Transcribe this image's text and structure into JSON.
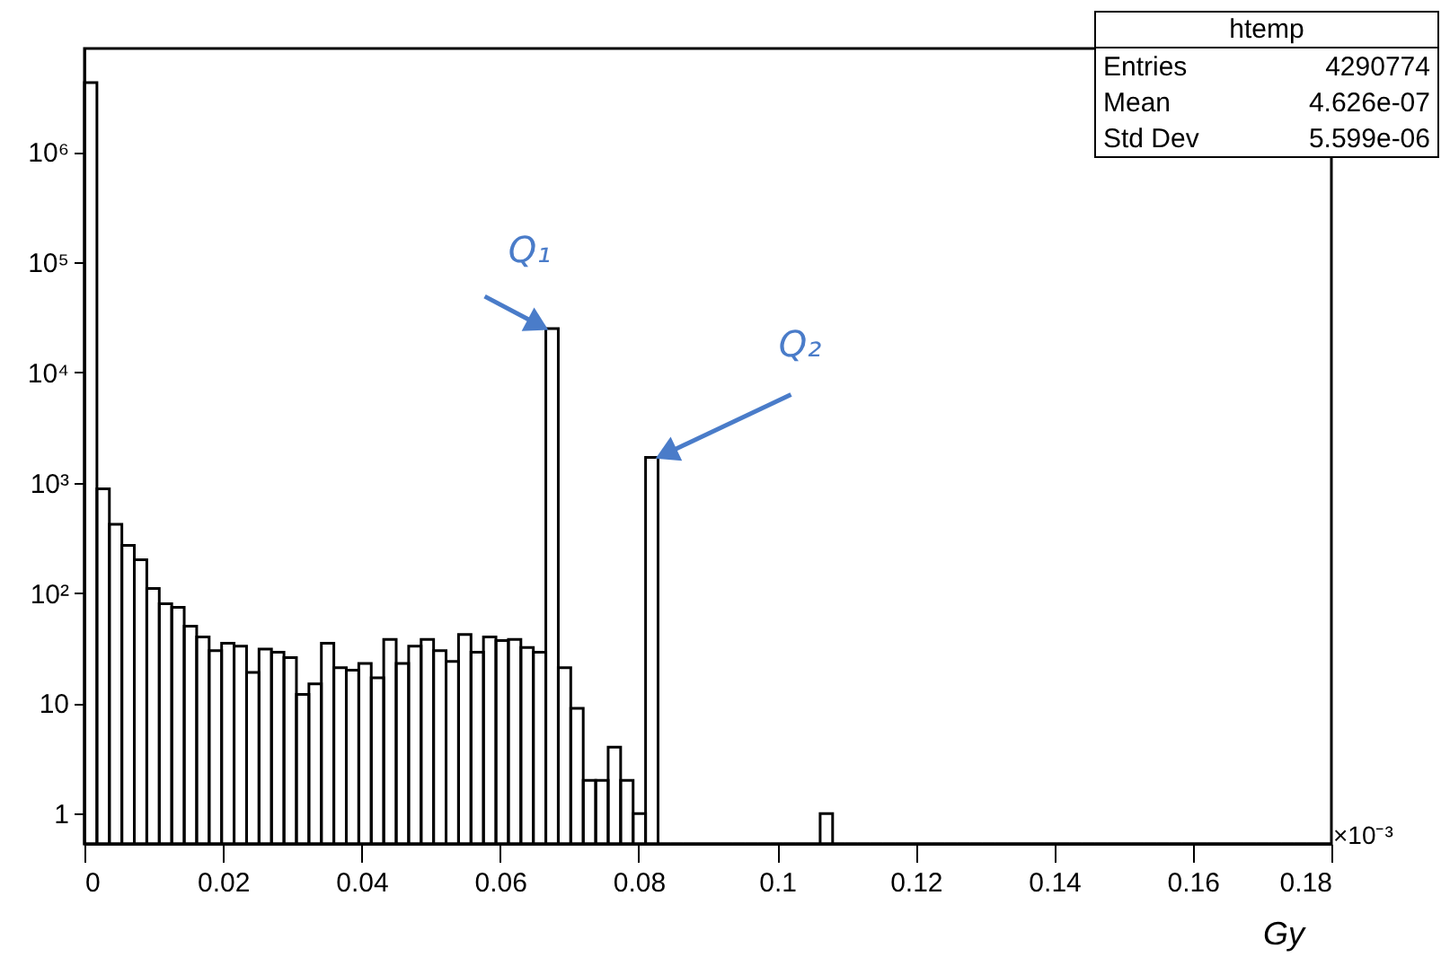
{
  "chart_data": {
    "type": "histogram",
    "title": "htemp",
    "xlabel": "Gy",
    "bins": [
      0,
      0.0018,
      0.0036,
      0.0054,
      0.0072,
      0.009,
      0.0108,
      0.0126,
      0.0144,
      0.0162,
      0.018,
      0.0198,
      0.0216,
      0.0234,
      0.0252,
      0.027,
      0.0288,
      0.0306,
      0.0324,
      0.0342,
      0.036,
      0.0378,
      0.0396,
      0.0414,
      0.0432,
      0.045,
      0.0468,
      0.0486,
      0.0504,
      0.0522,
      0.054,
      0.0558,
      0.0576,
      0.0594,
      0.0612,
      0.063,
      0.0648,
      0.0666,
      0.0684,
      0.0702,
      0.072,
      0.0738,
      0.0756,
      0.0774,
      0.0792,
      0.081,
      0.0828,
      0.0846,
      0.0864,
      0.0882,
      0.09,
      0.0918,
      0.0936,
      0.0954,
      0.0972,
      0.099,
      0.1008,
      0.1026,
      0.1044,
      0.1062,
      0.108,
      0.1098,
      0.1116,
      0.1134,
      0.1152,
      0.117,
      0.1188,
      0.1206,
      0.1224,
      0.1242,
      0.126,
      0.1278,
      0.1296,
      0.1314,
      0.1332,
      0.135,
      0.1368,
      0.1386,
      0.1404,
      0.1422,
      0.144,
      0.1458,
      0.1476,
      0.1494,
      0.1512,
      0.153,
      0.1548,
      0.1566,
      0.1584,
      0.1602,
      0.162,
      0.1638,
      0.1656,
      0.1674,
      0.1692,
      0.171,
      0.1728,
      0.1746,
      0.1764,
      0.1782,
      0.18
    ],
    "values": [
      4260000,
      880,
      420,
      270,
      200,
      110,
      80,
      74,
      50,
      40,
      30,
      35,
      33,
      19,
      31,
      29,
      26,
      12,
      15,
      35,
      21,
      20,
      23,
      17,
      38,
      23,
      33,
      38,
      30,
      24,
      42,
      29,
      40,
      37,
      38,
      32,
      29,
      25000,
      21,
      9,
      2,
      2,
      4,
      2,
      1,
      1700,
      null,
      null,
      null,
      null,
      null,
      null,
      null,
      null,
      null,
      null,
      null,
      null,
      null,
      1,
      null,
      null,
      null,
      null,
      null,
      null,
      null,
      null,
      null,
      null,
      null,
      null,
      null,
      null,
      null,
      null,
      null,
      null,
      null,
      null,
      null,
      null,
      null,
      null,
      null,
      null,
      null,
      null,
      null,
      null,
      null,
      null,
      null,
      null,
      null,
      null,
      null,
      null,
      null,
      null
    ],
    "color": "#000000",
    "log": true,
    "grid": false,
    "xlim": [
      0,
      0.18
    ],
    "xticks": [
      0,
      0.02,
      0.04,
      0.06,
      0.08,
      0.1,
      0.12,
      0.14,
      0.16,
      0.18
    ],
    "ylim": [
      0.53,
      8700000
    ],
    "yticks": [
      1,
      10,
      {
        "value": 100,
        "label": "10²"
      },
      {
        "value": 1000,
        "label": "10³"
      },
      {
        "value": 10000,
        "label": "10⁴"
      },
      {
        "value": 100000,
        "label": "10⁵"
      },
      {
        "value": 1000000,
        "label": "10⁶"
      }
    ],
    "annotations": [
      {
        "text": "Q₁",
        "x": 0.0666,
        "y": 25000
      },
      {
        "text": "Q₂",
        "x": 0.0828,
        "y": 1700
      },
      "Entries 4290774",
      "Mean 4.626e-07",
      "Std Dev 5.599e-06",
      "×10⁻³"
    ]
  }
}
